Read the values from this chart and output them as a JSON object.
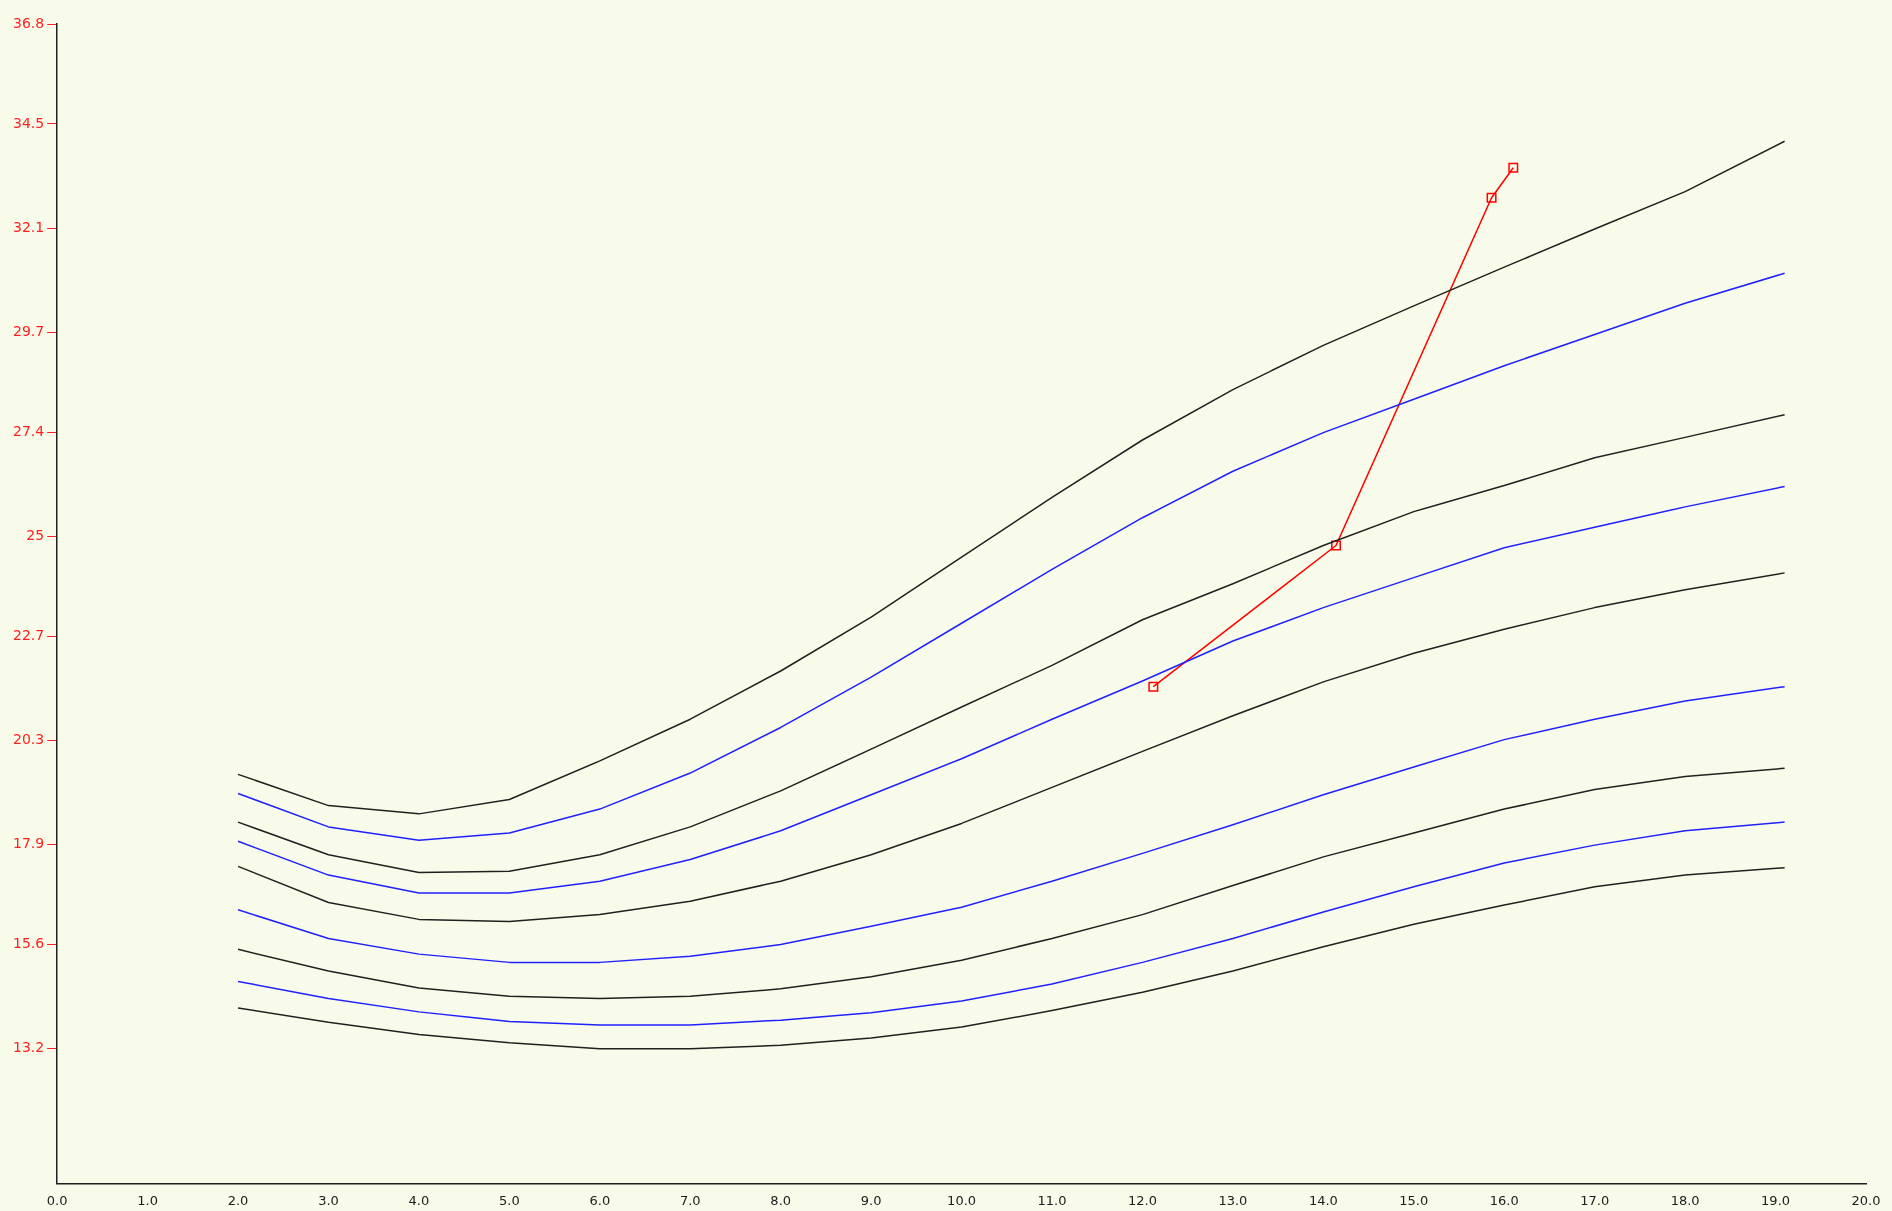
{
  "chart_data": {
    "type": "line",
    "x": [
      2,
      3,
      4,
      5,
      6,
      7,
      8,
      9,
      10,
      11,
      12,
      13,
      14,
      15,
      16,
      17,
      18,
      19.1
    ],
    "series": [
      {
        "color": "#202020",
        "values": [
          19.52,
          18.8,
          18.61,
          18.94,
          19.83,
          20.79,
          21.9,
          23.14,
          24.52,
          25.9,
          27.22,
          28.38,
          29.4,
          30.31,
          31.2,
          32.08,
          32.94,
          34.1
        ]
      },
      {
        "color": "#2020ff",
        "values": [
          19.08,
          18.31,
          18.0,
          18.17,
          18.72,
          19.55,
          20.6,
          21.76,
          23.0,
          24.24,
          25.43,
          26.5,
          27.39,
          28.16,
          28.93,
          29.65,
          30.37,
          31.06
        ]
      },
      {
        "color": "#202020",
        "values": [
          18.42,
          17.67,
          17.26,
          17.29,
          17.67,
          18.31,
          19.14,
          20.1,
          21.07,
          22.03,
          23.08,
          23.91,
          24.79,
          25.57,
          26.17,
          26.81,
          27.28,
          27.8
        ]
      },
      {
        "color": "#2020ff",
        "values": [
          17.98,
          17.2,
          16.79,
          16.79,
          17.06,
          17.56,
          18.22,
          19.05,
          19.88,
          20.79,
          21.67,
          22.59,
          23.36,
          24.05,
          24.74,
          25.21,
          25.68,
          26.15
        ]
      },
      {
        "color": "#202020",
        "values": [
          17.4,
          16.57,
          16.18,
          16.13,
          16.29,
          16.6,
          17.06,
          17.67,
          18.39,
          19.22,
          20.05,
          20.87,
          21.65,
          22.31,
          22.86,
          23.36,
          23.77,
          24.16
        ]
      },
      {
        "color": "#2020ff",
        "values": [
          16.4,
          15.74,
          15.38,
          15.19,
          15.19,
          15.33,
          15.6,
          16.02,
          16.46,
          17.06,
          17.7,
          18.36,
          19.05,
          19.69,
          20.32,
          20.79,
          21.21,
          21.54
        ]
      },
      {
        "color": "#202020",
        "values": [
          15.49,
          14.99,
          14.6,
          14.41,
          14.36,
          14.41,
          14.58,
          14.86,
          15.24,
          15.74,
          16.29,
          16.96,
          17.62,
          18.17,
          18.72,
          19.17,
          19.47,
          19.66
        ]
      },
      {
        "color": "#2020ff",
        "values": [
          14.75,
          14.36,
          14.05,
          13.83,
          13.75,
          13.75,
          13.86,
          14.03,
          14.3,
          14.69,
          15.19,
          15.74,
          16.35,
          16.93,
          17.48,
          17.89,
          18.22,
          18.42
        ]
      },
      {
        "color": "#202020",
        "values": [
          14.14,
          13.81,
          13.53,
          13.34,
          13.2,
          13.2,
          13.28,
          13.45,
          13.7,
          14.08,
          14.5,
          14.99,
          15.55,
          16.07,
          16.51,
          16.93,
          17.2,
          17.37
        ]
      },
      {
        "color": "#ff0000",
        "marker": "square",
        "x": [
          12.12,
          14.14,
          15.86,
          16.1
        ],
        "values": [
          21.54,
          24.79,
          32.8,
          33.49
        ]
      }
    ],
    "xlim": [
      0,
      20
    ],
    "xticks": [
      {
        "value": 0,
        "label": "0.0"
      },
      {
        "value": 1,
        "label": "1.0"
      },
      {
        "value": 2,
        "label": "2.0"
      },
      {
        "value": 3,
        "label": "3.0"
      },
      {
        "value": 4,
        "label": "4.0"
      },
      {
        "value": 5,
        "label": "5.0"
      },
      {
        "value": 6,
        "label": "6.0"
      },
      {
        "value": 7,
        "label": "7.0"
      },
      {
        "value": 8,
        "label": "8.0"
      },
      {
        "value": 9,
        "label": "9.0"
      },
      {
        "value": 10,
        "label": "10.0"
      },
      {
        "value": 11,
        "label": "11.0"
      },
      {
        "value": 12,
        "label": "12.0"
      },
      {
        "value": 13,
        "label": "13.0"
      },
      {
        "value": 14,
        "label": "14.0"
      },
      {
        "value": 15,
        "label": "15.0"
      },
      {
        "value": 16,
        "label": "16.0"
      },
      {
        "value": 17,
        "label": "17.0"
      },
      {
        "value": 18,
        "label": "18.0"
      },
      {
        "value": 19,
        "label": "19.0"
      },
      {
        "value": 20,
        "label": "20.0"
      }
    ],
    "ylim": [
      10.1,
      36.8
    ],
    "yticks": [
      13.2,
      15.6,
      17.9,
      20.3,
      22.7,
      25,
      27.4,
      29.7,
      32.1,
      34.5,
      36.8
    ],
    "grid": false,
    "legend": false,
    "marker": "none",
    "line_style": "solid"
  }
}
